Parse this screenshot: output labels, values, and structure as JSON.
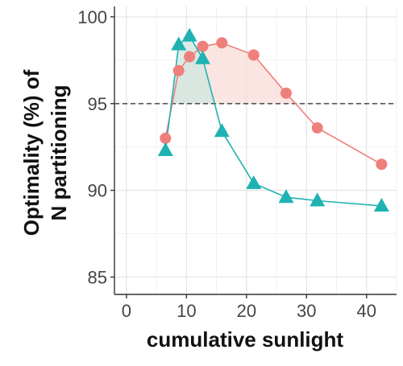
{
  "chart_data": {
    "type": "line",
    "title": "",
    "xlabel": "cumulative sunlight",
    "ylabel_lines": [
      "Optimality (%) of",
      "N partitioning"
    ],
    "xlim": [
      -2,
      45
    ],
    "ylim": [
      84,
      100.6
    ],
    "x_ticks": [
      0,
      10,
      20,
      30,
      40
    ],
    "y_ticks": [
      85,
      90,
      95,
      100
    ],
    "grid": true,
    "reference_line": {
      "y": 95,
      "style": "dashed",
      "color": "#555555"
    },
    "legend": "none",
    "series": [
      {
        "marker": "circle",
        "color": "#ef7f7b",
        "fill": "#fadcd8",
        "points": [
          {
            "x": 6.5,
            "y": 93.0
          },
          {
            "x": 8.7,
            "y": 96.9
          },
          {
            "x": 10.5,
            "y": 97.7
          },
          {
            "x": 12.7,
            "y": 98.3
          },
          {
            "x": 15.9,
            "y": 98.5
          },
          {
            "x": 21.2,
            "y": 97.8
          },
          {
            "x": 26.6,
            "y": 95.6
          },
          {
            "x": 31.8,
            "y": 93.6
          },
          {
            "x": 42.5,
            "y": 91.5
          }
        ]
      },
      {
        "marker": "triangle",
        "color": "#20b2b2",
        "fill": "#cfe5df",
        "points": [
          {
            "x": 6.5,
            "y": 92.3
          },
          {
            "x": 8.7,
            "y": 98.4
          },
          {
            "x": 10.5,
            "y": 98.9
          },
          {
            "x": 12.7,
            "y": 97.6
          },
          {
            "x": 15.9,
            "y": 93.4
          },
          {
            "x": 21.2,
            "y": 90.4
          },
          {
            "x": 26.6,
            "y": 89.6
          },
          {
            "x": 31.8,
            "y": 89.4
          },
          {
            "x": 42.5,
            "y": 89.1
          }
        ]
      }
    ]
  }
}
